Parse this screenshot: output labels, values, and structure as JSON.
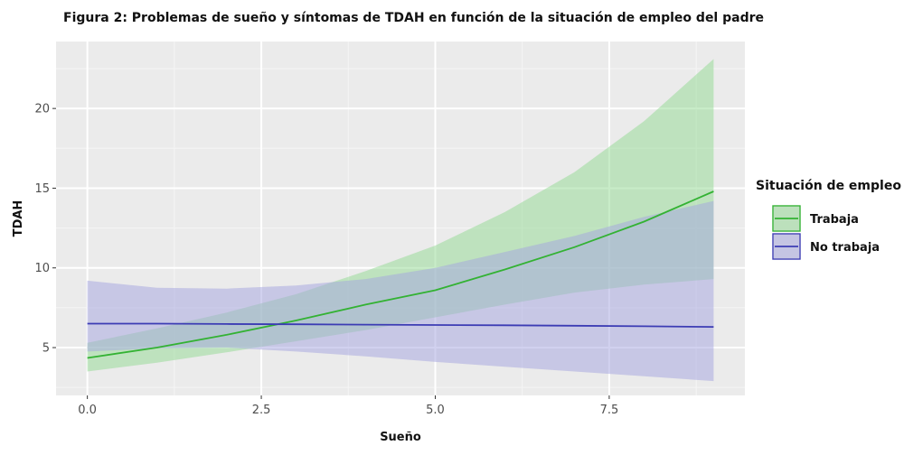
{
  "chart_data": {
    "type": "line",
    "title": "Figura 2: Problemas de sueño y síntomas de TDAH en función de la situación de empleo del padre",
    "xlabel": "Sueño",
    "ylabel": "TDAH",
    "xlim": [
      -0.45,
      9.45
    ],
    "ylim": [
      2.0,
      24.2
    ],
    "x_ticks": [
      0.0,
      2.5,
      5.0,
      7.5
    ],
    "x_tick_labels": [
      "0.0",
      "2.5",
      "5.0",
      "7.5"
    ],
    "y_ticks": [
      5,
      10,
      15,
      20
    ],
    "y_tick_labels": [
      "5",
      "10",
      "15",
      "20"
    ],
    "grid": true,
    "legend": {
      "title": "Situación de empleo",
      "position": "right"
    },
    "x": [
      0,
      1,
      2,
      3,
      4,
      5,
      6,
      7,
      8,
      9
    ],
    "series": [
      {
        "name": "Trabaja",
        "color": "#33b233",
        "fill": "#91d991",
        "values": [
          4.35,
          5.0,
          5.8,
          6.7,
          7.7,
          8.6,
          9.9,
          11.3,
          12.9,
          14.8
        ],
        "lower": [
          3.5,
          4.05,
          4.7,
          5.4,
          6.1,
          6.9,
          7.7,
          8.45,
          8.95,
          9.3
        ],
        "upper": [
          5.3,
          6.2,
          7.2,
          8.35,
          9.8,
          11.4,
          13.5,
          16.0,
          19.2,
          23.1
        ]
      },
      {
        "name": "No trabaja",
        "color": "#3c3cb4",
        "fill": "#a3a3e0",
        "values": [
          6.5,
          6.5,
          6.48,
          6.46,
          6.44,
          6.42,
          6.4,
          6.37,
          6.34,
          6.3
        ],
        "lower": [
          4.75,
          4.95,
          5.0,
          4.75,
          4.45,
          4.1,
          3.8,
          3.5,
          3.2,
          2.9
        ],
        "upper": [
          9.2,
          8.75,
          8.7,
          8.9,
          9.3,
          10.0,
          11.0,
          12.0,
          13.2,
          14.2
        ]
      }
    ]
  }
}
